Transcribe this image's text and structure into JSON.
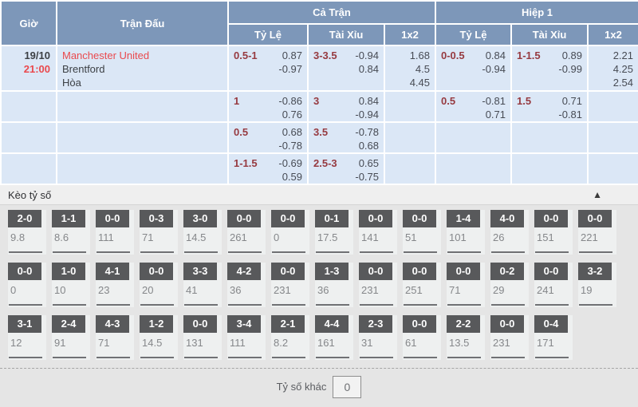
{
  "table": {
    "headers": {
      "time": "Giờ",
      "match": "Trận Đấu",
      "full_match": "Cả Trận",
      "first_half": "Hiệp 1",
      "handicap": "Tỷ Lệ",
      "over_under": "Tài Xỉu",
      "one_x_two": "1x2"
    },
    "match": {
      "date": "19/10",
      "time": "21:00",
      "home": "Manchester United",
      "away": "Brentford",
      "draw": "Hòa"
    }
  },
  "odds_rows": [
    {
      "ft": {
        "hdp": {
          "line": "0.5-1",
          "top": "0.87",
          "bottom": "-0.97"
        },
        "ou": {
          "line": "3-3.5",
          "top": "-0.94",
          "bottom": "0.84"
        },
        "x12": {
          "h": "1.68",
          "d": "4.5",
          "a": "4.45"
        }
      },
      "fh": {
        "hdp": {
          "line": "0-0.5",
          "top": "0.84",
          "bottom": "-0.94"
        },
        "ou": {
          "line": "1-1.5",
          "top": "0.89",
          "bottom": "-0.99"
        },
        "x12": {
          "h": "2.21",
          "d": "4.25",
          "a": "2.54"
        }
      }
    },
    {
      "ft": {
        "hdp": {
          "line": "1",
          "top": "-0.86",
          "bottom": "0.76"
        },
        "ou": {
          "line": "3",
          "top": "0.84",
          "bottom": "-0.94"
        },
        "x12": {
          "h": "",
          "d": "",
          "a": ""
        }
      },
      "fh": {
        "hdp": {
          "line": "0.5",
          "top": "-0.81",
          "bottom": "0.71"
        },
        "ou": {
          "line": "1.5",
          "top": "0.71",
          "bottom": "-0.81"
        },
        "x12": {
          "h": "",
          "d": "",
          "a": ""
        }
      }
    },
    {
      "ft": {
        "hdp": {
          "line": "0.5",
          "top": "0.68",
          "bottom": "-0.78"
        },
        "ou": {
          "line": "3.5",
          "top": "-0.78",
          "bottom": "0.68"
        },
        "x12": {
          "h": "",
          "d": "",
          "a": ""
        }
      },
      "fh": {
        "hdp": {
          "line": "",
          "top": "",
          "bottom": ""
        },
        "ou": {
          "line": "",
          "top": "",
          "bottom": ""
        },
        "x12": {
          "h": "",
          "d": "",
          "a": ""
        }
      }
    },
    {
      "ft": {
        "hdp": {
          "line": "1-1.5",
          "top": "-0.69",
          "bottom": "0.59"
        },
        "ou": {
          "line": "2.5-3",
          "top": "0.65",
          "bottom": "-0.75"
        },
        "x12": {
          "h": "",
          "d": "",
          "a": ""
        }
      },
      "fh": {
        "hdp": {
          "line": "",
          "top": "",
          "bottom": ""
        },
        "ou": {
          "line": "",
          "top": "",
          "bottom": ""
        },
        "x12": {
          "h": "",
          "d": "",
          "a": ""
        }
      }
    }
  ],
  "score_section": {
    "title": "Kèo tỷ số",
    "collapse_icon": "▲",
    "rows": [
      [
        {
          "s": "2-0",
          "o": "9.8"
        },
        {
          "s": "1-1",
          "o": "8.6"
        },
        {
          "s": "0-0",
          "o": "111"
        },
        {
          "s": "0-3",
          "o": "71"
        },
        {
          "s": "3-0",
          "o": "14.5"
        },
        {
          "s": "0-0",
          "o": "261"
        },
        {
          "s": "0-0",
          "o": "0"
        },
        {
          "s": "0-1",
          "o": "17.5"
        },
        {
          "s": "0-0",
          "o": "141"
        },
        {
          "s": "0-0",
          "o": "51"
        },
        {
          "s": "1-4",
          "o": "101"
        },
        {
          "s": "4-0",
          "o": "26"
        },
        {
          "s": "0-0",
          "o": "151"
        },
        {
          "s": "0-0",
          "o": "221"
        }
      ],
      [
        {
          "s": "0-0",
          "o": "0"
        },
        {
          "s": "1-0",
          "o": "10"
        },
        {
          "s": "4-1",
          "o": "23"
        },
        {
          "s": "0-0",
          "o": "20"
        },
        {
          "s": "3-3",
          "o": "41"
        },
        {
          "s": "4-2",
          "o": "36"
        },
        {
          "s": "0-0",
          "o": "231"
        },
        {
          "s": "1-3",
          "o": "36"
        },
        {
          "s": "0-0",
          "o": "231"
        },
        {
          "s": "0-0",
          "o": "251"
        },
        {
          "s": "0-0",
          "o": "71"
        },
        {
          "s": "0-2",
          "o": "29"
        },
        {
          "s": "0-0",
          "o": "241"
        },
        {
          "s": "3-2",
          "o": "19"
        }
      ],
      [
        {
          "s": "3-1",
          "o": "12"
        },
        {
          "s": "2-4",
          "o": "91"
        },
        {
          "s": "4-3",
          "o": "71"
        },
        {
          "s": "1-2",
          "o": "14.5"
        },
        {
          "s": "0-0",
          "o": "131"
        },
        {
          "s": "3-4",
          "o": "111"
        },
        {
          "s": "2-1",
          "o": "8.2"
        },
        {
          "s": "4-4",
          "o": "161"
        },
        {
          "s": "2-3",
          "o": "31"
        },
        {
          "s": "0-0",
          "o": "61"
        },
        {
          "s": "2-2",
          "o": "13.5"
        },
        {
          "s": "0-0",
          "o": "231"
        },
        {
          "s": "0-4",
          "o": "171"
        }
      ]
    ],
    "other_score_label": "Tỷ số khác",
    "other_score_value": "0"
  },
  "colors": {
    "header_blue": "#7d97b9",
    "row_blue": "#dbe7f6",
    "accent_red": "#ea494d",
    "handicap_maroon": "#963a40",
    "score_band_gray": "#58595b"
  }
}
